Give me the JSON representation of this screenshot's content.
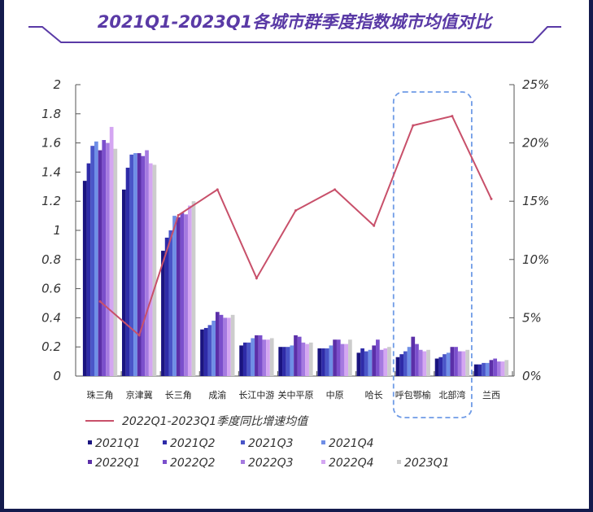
{
  "chart_data": {
    "type": "bar",
    "title": "2021Q1-2023Q1各城市群季度指数城市均值对比",
    "categories": [
      "珠三角",
      "京津冀",
      "长三角",
      "成渝",
      "长江中游",
      "关中平原",
      "中原",
      "哈长",
      "呼包鄂榆",
      "北部湾",
      "兰西"
    ],
    "left_axis": {
      "ylim": [
        0,
        2
      ],
      "ticks": [
        "0",
        "0.2",
        "0.4",
        "0.6",
        "0.8",
        "1",
        "1.2",
        "1.4",
        "1.6",
        "1.8",
        "2"
      ]
    },
    "right_axis": {
      "ylim": [
        0,
        25
      ],
      "ticks": [
        "0%",
        "5%",
        "10%",
        "15%",
        "20%",
        "25%"
      ]
    },
    "series": [
      {
        "name": "2021Q1",
        "color": "#1a1480",
        "values": [
          1.34,
          1.28,
          0.86,
          0.32,
          0.21,
          0.2,
          0.19,
          0.16,
          0.13,
          0.12,
          0.08
        ]
      },
      {
        "name": "2021Q2",
        "color": "#2e2ba8",
        "values": [
          1.46,
          1.43,
          0.95,
          0.33,
          0.23,
          0.2,
          0.19,
          0.19,
          0.15,
          0.13,
          0.08
        ]
      },
      {
        "name": "2021Q3",
        "color": "#4a55c8",
        "values": [
          1.58,
          1.52,
          1.0,
          0.35,
          0.23,
          0.2,
          0.19,
          0.17,
          0.17,
          0.15,
          0.09
        ]
      },
      {
        "name": "2021Q4",
        "color": "#6f8ee6",
        "values": [
          1.61,
          1.53,
          1.1,
          0.38,
          0.26,
          0.21,
          0.21,
          0.18,
          0.2,
          0.16,
          0.09
        ]
      },
      {
        "name": "2022Q1",
        "color": "#5b2fa8",
        "values": [
          1.55,
          1.53,
          1.09,
          0.44,
          0.28,
          0.28,
          0.25,
          0.21,
          0.27,
          0.2,
          0.11
        ]
      },
      {
        "name": "2022Q2",
        "color": "#7b4fcc",
        "values": [
          1.62,
          1.51,
          1.12,
          0.42,
          0.28,
          0.27,
          0.25,
          0.25,
          0.22,
          0.2,
          0.12
        ]
      },
      {
        "name": "2022Q3",
        "color": "#a57ae0",
        "values": [
          1.6,
          1.55,
          1.11,
          0.4,
          0.25,
          0.23,
          0.22,
          0.18,
          0.18,
          0.17,
          0.1
        ]
      },
      {
        "name": "2022Q4",
        "color": "#d4a6f2",
        "values": [
          1.71,
          1.46,
          1.17,
          0.4,
          0.25,
          0.22,
          0.22,
          0.19,
          0.17,
          0.17,
          0.1
        ]
      },
      {
        "name": "2023Q1",
        "color": "#cccccc",
        "values": [
          1.56,
          1.45,
          1.2,
          0.42,
          0.26,
          0.23,
          0.25,
          0.2,
          0.18,
          0.18,
          0.11
        ]
      }
    ],
    "line": {
      "name": "2022Q1-2023Q1季度同比增速均值",
      "color": "#c8506a",
      "values": [
        6.4,
        3.5,
        13.8,
        16.0,
        8.4,
        14.2,
        16.0,
        12.9,
        21.5,
        22.3,
        15.2
      ]
    },
    "highlight": [
      "呼包鄂榆",
      "北部湾"
    ],
    "highlight_color": "#6f9be6",
    "legend_position": "bottom-left"
  }
}
